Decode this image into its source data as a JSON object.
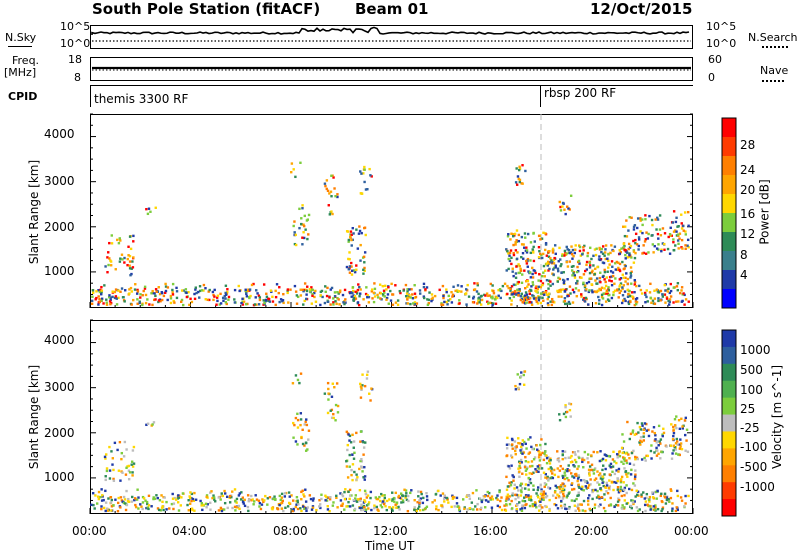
{
  "header": {
    "station": "South Pole Station (fitACF)",
    "beam": "Beam 01",
    "date": "12/Oct/2015"
  },
  "left_labels": {
    "nsky": "N.Sky",
    "freq": "Freq.",
    "freq_unit": "[MHz]",
    "cpid": "CPID"
  },
  "right_labels": {
    "nsearch": "N.Search",
    "nave": "Nave"
  },
  "strip_ticks": {
    "nsky_top": "10^5",
    "nsky_bottom": "10^0",
    "nsearch_top": "10^5",
    "nsearch_bottom": "10^0",
    "freq_top": "18",
    "freq_bottom": "8",
    "nave_top": "60",
    "nave_bottom": "0"
  },
  "cpid": {
    "left": "themis 3300 RF",
    "right": "rbsp 200 RF"
  },
  "colors": {
    "red": "#ff0000",
    "orange": "#ff8c00",
    "yellow": "#ffd700",
    "green": "#2e8b57",
    "lightgreen": "#7ccd3c",
    "blue": "#1e3a8a",
    "grey": "#bdbdbd"
  },
  "chart_data": [
    {
      "type": "heatmap",
      "xlabel": "",
      "ylabel": "Slant Range [km]",
      "y_ticks": [
        "1000",
        "2000",
        "3000",
        "4000"
      ],
      "ylim": [
        200,
        4500
      ],
      "colorbar": {
        "label": "Power [dB]",
        "ticks": [
          "4",
          "8",
          "12",
          "16",
          "20",
          "24",
          "28"
        ],
        "colors": [
          "#0000ff",
          "#1f3aa8",
          "#3a7f8c",
          "#2e8b57",
          "#7ccd3c",
          "#ffd700",
          "#ffa500",
          "#ff7f00",
          "#ff3b00",
          "#ff0000"
        ]
      }
    },
    {
      "type": "heatmap",
      "xlabel": "Time UT",
      "ylabel": "Slant Range [km]",
      "y_ticks": [
        "1000",
        "2000",
        "3000",
        "4000"
      ],
      "ylim": [
        200,
        4500
      ],
      "x_ticks": [
        "00:00",
        "04:00",
        "08:00",
        "12:00",
        "16:00",
        "20:00",
        "00:00"
      ],
      "colorbar": {
        "label": "Velocity [m s^-1]",
        "ticks": [
          "1000",
          "500",
          "100",
          "25",
          "-25",
          "-100",
          "-500",
          "-1000"
        ],
        "colors": [
          "#1f3aa8",
          "#2e5f9e",
          "#2e8b57",
          "#4fb04f",
          "#7ccd3c",
          "#bdbdbd",
          "#ffd700",
          "#ffa500",
          "#ff7f00",
          "#ff3b00",
          "#ff0000"
        ]
      }
    }
  ]
}
